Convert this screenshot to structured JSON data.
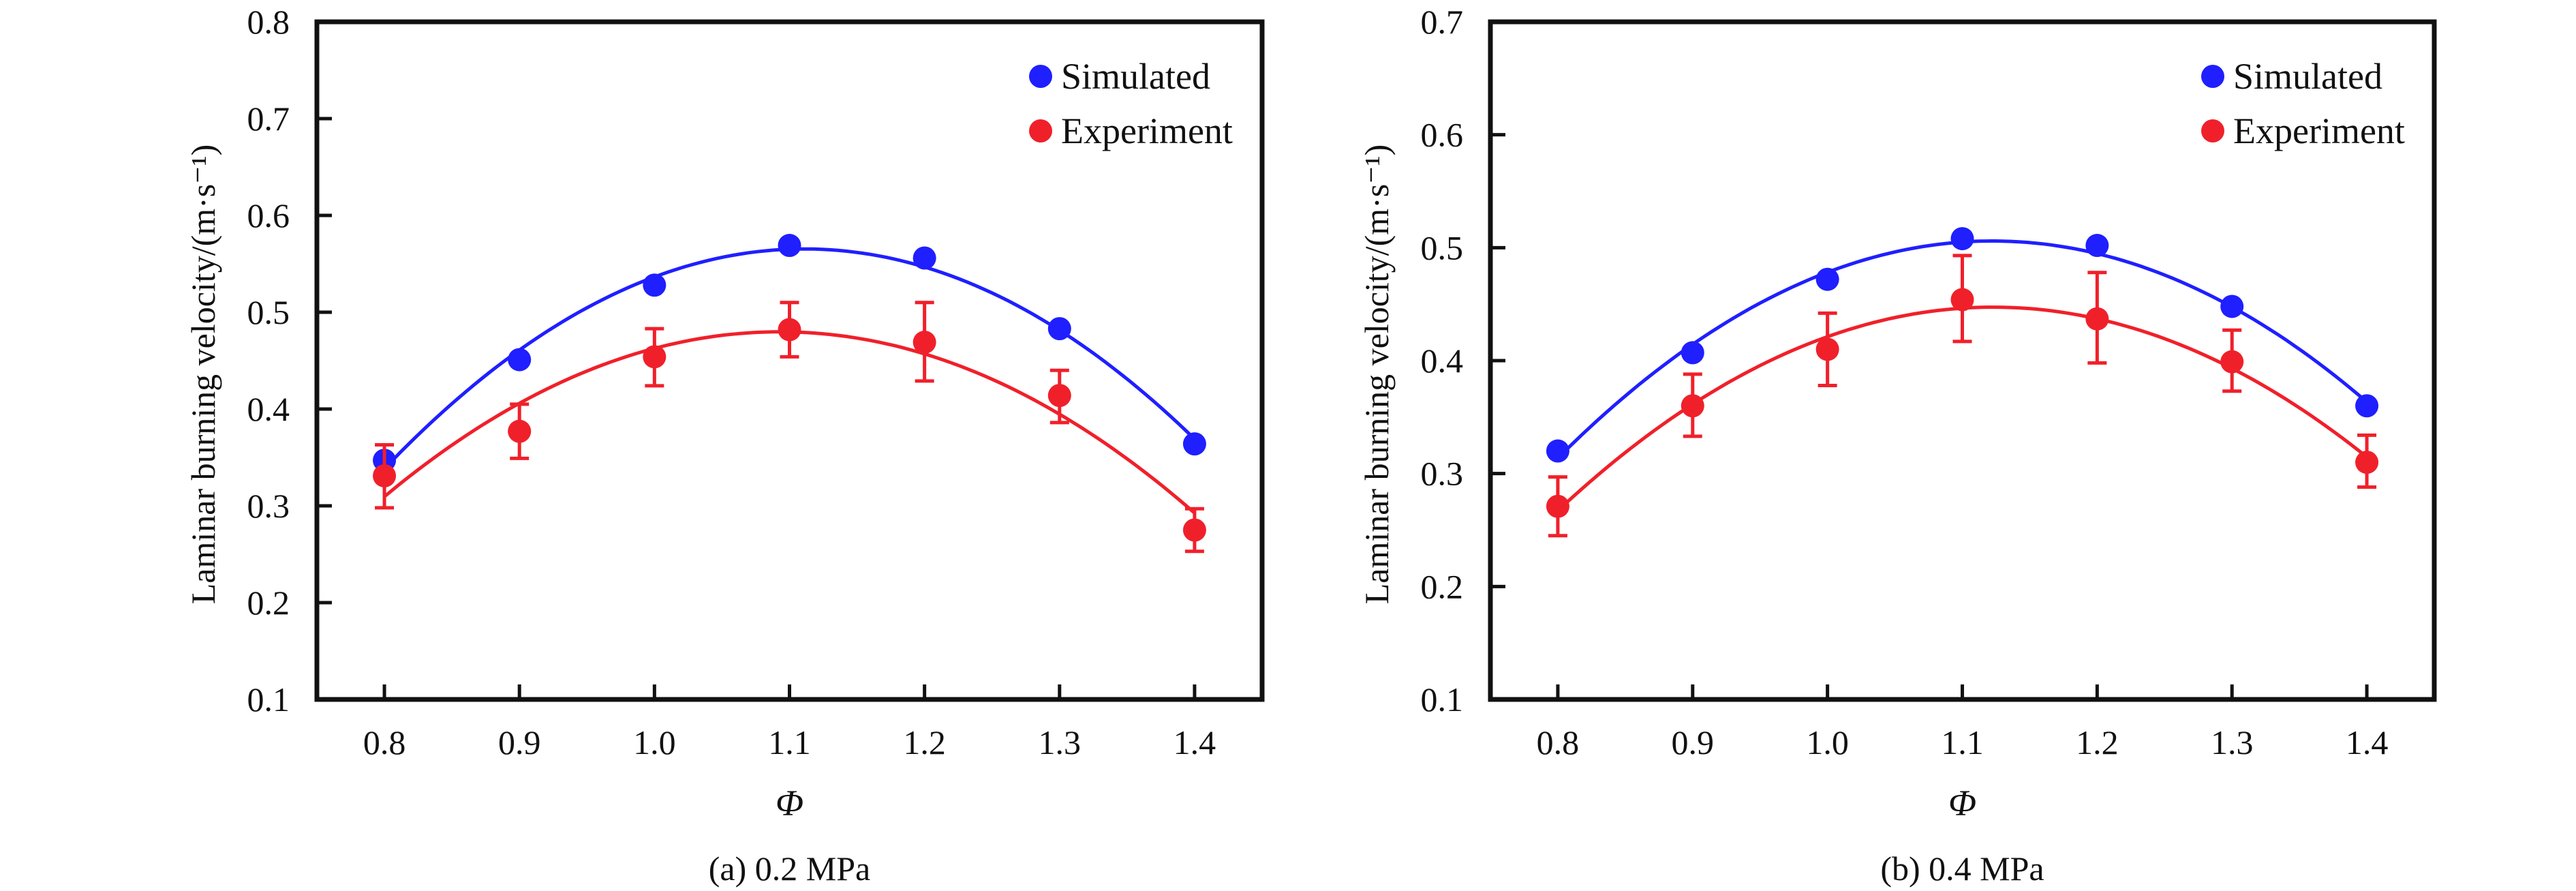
{
  "chart_data": [
    {
      "type": "scatter",
      "panel": "a",
      "caption": "(a) 0.2 MPa",
      "xlabel": "Φ",
      "ylabel": "Laminar burning velocity/(m·s⁻¹)",
      "xlim": [
        0.75,
        1.45
      ],
      "ylim": [
        0.1,
        0.8
      ],
      "xticks": [
        "0.8",
        "0.9",
        "1.0",
        "1.1",
        "1.2",
        "1.3",
        "1.4"
      ],
      "yticks": [
        "0.1",
        "0.2",
        "0.3",
        "0.4",
        "0.5",
        "0.6",
        "0.7",
        "0.8"
      ],
      "legend_position": "top-right",
      "grid": false,
      "x": [
        0.8,
        0.9,
        1.0,
        1.1,
        1.2,
        1.3,
        1.4
      ],
      "series": [
        {
          "name": "Simulated",
          "color": "#1f1fff",
          "values": [
            0.347,
            0.451,
            0.528,
            0.569,
            0.556,
            0.483,
            0.364
          ],
          "fit": "quadratic"
        },
        {
          "name": "Experiment",
          "color": "#f0202a",
          "values": [
            0.331,
            0.377,
            0.454,
            0.482,
            0.469,
            0.414,
            0.275
          ],
          "err_high": [
            0.363,
            0.405,
            0.483,
            0.51,
            0.51,
            0.44,
            0.297
          ],
          "err_low": [
            0.298,
            0.349,
            0.424,
            0.454,
            0.429,
            0.386,
            0.253
          ],
          "fit": "quadratic"
        }
      ]
    },
    {
      "type": "scatter",
      "panel": "b",
      "caption": "(b) 0.4 MPa",
      "xlabel": "Φ",
      "ylabel": "Laminar burning velocity/(m·s⁻¹)",
      "xlim": [
        0.75,
        1.45
      ],
      "ylim": [
        0.1,
        0.7
      ],
      "xticks": [
        "0.8",
        "0.9",
        "1.0",
        "1.1",
        "1.2",
        "1.3",
        "1.4"
      ],
      "yticks": [
        "0.1",
        "0.2",
        "0.3",
        "0.4",
        "0.5",
        "0.6",
        "0.7"
      ],
      "legend_position": "top-right",
      "grid": false,
      "x": [
        0.8,
        0.9,
        1.0,
        1.1,
        1.2,
        1.3,
        1.4
      ],
      "series": [
        {
          "name": "Simulated",
          "color": "#1f1fff",
          "values": [
            0.32,
            0.407,
            0.472,
            0.508,
            0.502,
            0.448,
            0.36
          ],
          "fit": "quadratic"
        },
        {
          "name": "Experiment",
          "color": "#f0202a",
          "values": [
            0.271,
            0.36,
            0.41,
            0.454,
            0.437,
            0.399,
            0.31
          ],
          "err_high": [
            0.297,
            0.388,
            0.442,
            0.493,
            0.478,
            0.427,
            0.334
          ],
          "err_low": [
            0.245,
            0.333,
            0.378,
            0.417,
            0.398,
            0.373,
            0.288
          ],
          "fit": "quadratic"
        }
      ]
    }
  ]
}
